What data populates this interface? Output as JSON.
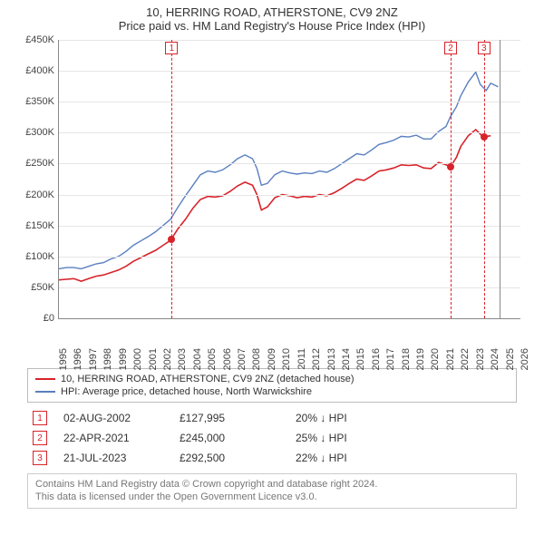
{
  "title": {
    "line1": "10, HERRING ROAD, ATHERSTONE, CV9 2NZ",
    "line2": "Price paid vs. HM Land Registry's House Price Index (HPI)"
  },
  "chart": {
    "type": "line",
    "background_color": "#ffffff",
    "grid_color": "#e6e6e6",
    "axis_color": "#888888",
    "tick_fontsize": 11,
    "y": {
      "min": 0,
      "max": 450000,
      "step": 50000,
      "prefix": "£",
      "suffix": "K",
      "ticks": [
        "£0",
        "£50K",
        "£100K",
        "£150K",
        "£200K",
        "£250K",
        "£300K",
        "£350K",
        "£400K",
        "£450K"
      ]
    },
    "x": {
      "min": 1995,
      "max": 2026,
      "step": 1,
      "ticks": [
        "1995",
        "1996",
        "1997",
        "1998",
        "1999",
        "2000",
        "2001",
        "2002",
        "2003",
        "2004",
        "2005",
        "2006",
        "2007",
        "2008",
        "2009",
        "2010",
        "2011",
        "2012",
        "2013",
        "2014",
        "2015",
        "2016",
        "2017",
        "2018",
        "2019",
        "2020",
        "2021",
        "2022",
        "2023",
        "2024",
        "2025",
        "2026"
      ]
    },
    "series": [
      {
        "name": "property",
        "label": "10, HERRING ROAD, ATHERSTONE, CV9 2NZ (detached house)",
        "color": "#d8232a",
        "line_width": 1.6,
        "data": [
          [
            1995,
            62000
          ],
          [
            1995.5,
            63000
          ],
          [
            1996,
            64000
          ],
          [
            1996.5,
            60000
          ],
          [
            1997,
            64000
          ],
          [
            1997.5,
            68000
          ],
          [
            1998,
            70000
          ],
          [
            1998.5,
            74000
          ],
          [
            1999,
            78000
          ],
          [
            1999.5,
            84000
          ],
          [
            2000,
            92000
          ],
          [
            2000.5,
            98000
          ],
          [
            2001,
            104000
          ],
          [
            2001.5,
            110000
          ],
          [
            2002,
            118000
          ],
          [
            2002.5,
            126000
          ],
          [
            2003,
            145000
          ],
          [
            2003.5,
            160000
          ],
          [
            2004,
            178000
          ],
          [
            2004.5,
            192000
          ],
          [
            2005,
            197000
          ],
          [
            2005.5,
            196000
          ],
          [
            2006,
            198000
          ],
          [
            2006.5,
            205000
          ],
          [
            2007,
            214000
          ],
          [
            2007.5,
            220000
          ],
          [
            2008,
            215000
          ],
          [
            2008.3,
            200000
          ],
          [
            2008.6,
            175000
          ],
          [
            2009,
            180000
          ],
          [
            2009.5,
            195000
          ],
          [
            2010,
            200000
          ],
          [
            2010.5,
            198000
          ],
          [
            2011,
            195000
          ],
          [
            2011.5,
            197000
          ],
          [
            2012,
            196000
          ],
          [
            2012.5,
            200000
          ],
          [
            2013,
            198000
          ],
          [
            2013.5,
            203000
          ],
          [
            2014,
            210000
          ],
          [
            2014.5,
            218000
          ],
          [
            2015,
            225000
          ],
          [
            2015.5,
            223000
          ],
          [
            2016,
            230000
          ],
          [
            2016.5,
            238000
          ],
          [
            2017,
            240000
          ],
          [
            2017.5,
            243000
          ],
          [
            2018,
            248000
          ],
          [
            2018.5,
            247000
          ],
          [
            2019,
            248000
          ],
          [
            2019.5,
            243000
          ],
          [
            2020,
            242000
          ],
          [
            2020.5,
            252000
          ],
          [
            2021,
            248000
          ],
          [
            2021.3,
            245000
          ],
          [
            2021.7,
            260000
          ],
          [
            2022,
            278000
          ],
          [
            2022.5,
            295000
          ],
          [
            2023,
            305000
          ],
          [
            2023.5,
            293000
          ],
          [
            2024,
            295000
          ]
        ]
      },
      {
        "name": "hpi",
        "label": "HPI: Average price, detached house, North Warwickshire",
        "color": "#5a7fc0",
        "line_width": 1.4,
        "data": [
          [
            1995,
            80000
          ],
          [
            1995.5,
            82000
          ],
          [
            1996,
            82000
          ],
          [
            1996.5,
            80000
          ],
          [
            1997,
            84000
          ],
          [
            1997.5,
            88000
          ],
          [
            1998,
            90000
          ],
          [
            1998.5,
            96000
          ],
          [
            1999,
            100000
          ],
          [
            1999.5,
            108000
          ],
          [
            2000,
            118000
          ],
          [
            2000.5,
            125000
          ],
          [
            2001,
            132000
          ],
          [
            2001.5,
            140000
          ],
          [
            2002,
            150000
          ],
          [
            2002.5,
            160000
          ],
          [
            2003,
            180000
          ],
          [
            2003.5,
            198000
          ],
          [
            2004,
            215000
          ],
          [
            2004.5,
            232000
          ],
          [
            2005,
            238000
          ],
          [
            2005.5,
            236000
          ],
          [
            2006,
            240000
          ],
          [
            2006.5,
            248000
          ],
          [
            2007,
            258000
          ],
          [
            2007.5,
            264000
          ],
          [
            2008,
            258000
          ],
          [
            2008.3,
            242000
          ],
          [
            2008.6,
            215000
          ],
          [
            2009,
            218000
          ],
          [
            2009.5,
            232000
          ],
          [
            2010,
            238000
          ],
          [
            2010.5,
            235000
          ],
          [
            2011,
            233000
          ],
          [
            2011.5,
            235000
          ],
          [
            2012,
            234000
          ],
          [
            2012.5,
            238000
          ],
          [
            2013,
            236000
          ],
          [
            2013.5,
            242000
          ],
          [
            2014,
            250000
          ],
          [
            2014.5,
            258000
          ],
          [
            2015,
            266000
          ],
          [
            2015.5,
            264000
          ],
          [
            2016,
            272000
          ],
          [
            2016.5,
            281000
          ],
          [
            2017,
            284000
          ],
          [
            2017.5,
            288000
          ],
          [
            2018,
            294000
          ],
          [
            2018.5,
            293000
          ],
          [
            2019,
            296000
          ],
          [
            2019.5,
            290000
          ],
          [
            2020,
            290000
          ],
          [
            2020.5,
            302000
          ],
          [
            2021,
            310000
          ],
          [
            2021.3,
            326000
          ],
          [
            2021.7,
            342000
          ],
          [
            2022,
            360000
          ],
          [
            2022.5,
            382000
          ],
          [
            2023,
            398000
          ],
          [
            2023.3,
            378000
          ],
          [
            2023.7,
            368000
          ],
          [
            2024,
            380000
          ],
          [
            2024.5,
            374000
          ]
        ]
      }
    ],
    "event_lines": [
      {
        "id": 1,
        "year": 2002.58,
        "color": "#d8232a"
      },
      {
        "id": 2,
        "year": 2021.31,
        "color": "#d8232a"
      },
      {
        "id": 3,
        "year": 2023.55,
        "color": "#d8232a"
      }
    ],
    "end_line": {
      "year": 2024.6,
      "color": "#888888"
    },
    "sale_points": [
      {
        "year": 2002.58,
        "value": 127995,
        "color": "#d8232a"
      },
      {
        "year": 2021.31,
        "value": 245000,
        "color": "#d8232a"
      },
      {
        "year": 2023.55,
        "value": 292500,
        "color": "#d8232a"
      }
    ]
  },
  "legend": {
    "items": [
      {
        "color": "#d8232a",
        "label": "10, HERRING ROAD, ATHERSTONE, CV9 2NZ (detached house)"
      },
      {
        "color": "#5a7fc0",
        "label": "HPI: Average price, detached house, North Warwickshire"
      }
    ]
  },
  "sales": [
    {
      "id": "1",
      "color": "#d8232a",
      "date": "02-AUG-2002",
      "price": "£127,995",
      "pct": "20% ↓ HPI"
    },
    {
      "id": "2",
      "color": "#d8232a",
      "date": "22-APR-2021",
      "price": "£245,000",
      "pct": "25% ↓ HPI"
    },
    {
      "id": "3",
      "color": "#d8232a",
      "date": "21-JUL-2023",
      "price": "£292,500",
      "pct": "22% ↓ HPI"
    }
  ],
  "attribution": {
    "line1": "Contains HM Land Registry data © Crown copyright and database right 2024.",
    "line2": "This data is licensed under the Open Government Licence v3.0."
  }
}
